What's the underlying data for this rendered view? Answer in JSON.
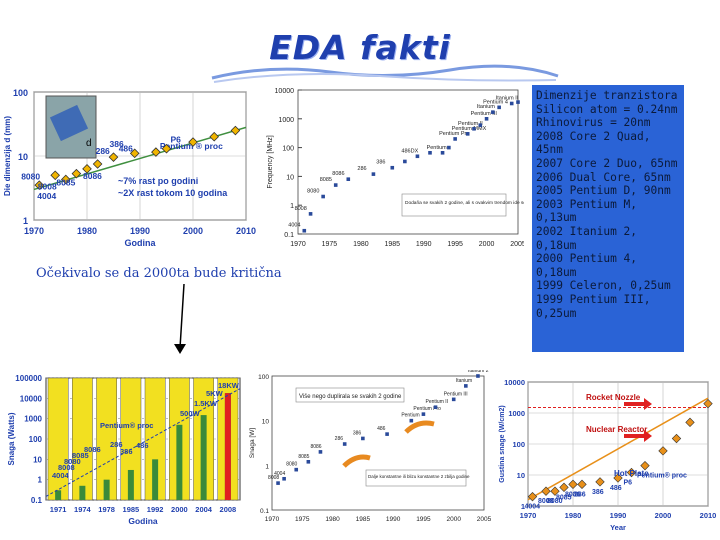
{
  "page": {
    "title": "EDA fakti",
    "note": "Očekivalo se da 2000ta bude kritična",
    "info_lines": [
      "Dimenzije tranzistora",
      "Silicon atom = 0.24nm",
      "Rhinovirus = 20nm",
      "2008 Core 2 Quad,",
      "45nm",
      "2007 Core 2 Duo, 65nm",
      "2006 Dual Core, 65nm",
      "2005 Pentium D, 90nm",
      "2003 Pentium M,",
      "0,13um",
      "2002 Itanium 2,",
      "0,18um",
      "2000 Pentium 4,",
      "0,18um",
      "1999 Celeron, 0,25um",
      "1999 Pentium III,",
      "0,25um"
    ]
  },
  "chart_data": [
    {
      "type": "scatter",
      "ylabel": "Die dimenzija d (mm)",
      "xlabel": "Godina",
      "yscale": "log",
      "ylim": [
        1,
        100
      ],
      "xlim": [
        1970,
        2010
      ],
      "xticks": [
        "1970",
        "1980",
        "1990",
        "2000",
        "2010"
      ],
      "yticks": [
        "1",
        "10",
        "100"
      ],
      "points": [
        {
          "x": 1971,
          "y": 3.5,
          "label": "4004"
        },
        {
          "x": 1974,
          "y": 5.0,
          "label": "8080"
        },
        {
          "x": 1976,
          "y": 4.3,
          "label": "8008"
        },
        {
          "x": 1978,
          "y": 5.3,
          "label": "8085"
        },
        {
          "x": 1980,
          "y": 6.3,
          "label": "8086"
        },
        {
          "x": 1982,
          "y": 7.5,
          "label": "286"
        },
        {
          "x": 1985,
          "y": 9.6,
          "label": "386"
        },
        {
          "x": 1989,
          "y": 11.0,
          "label": "486"
        },
        {
          "x": 1993,
          "y": 11.5,
          "label": "Pentium ® proc"
        },
        {
          "x": 1995,
          "y": 13.0,
          "label": "P6"
        },
        {
          "x": 2000,
          "y": 16.5,
          "label": ""
        },
        {
          "x": 2004,
          "y": 20.0,
          "label": ""
        },
        {
          "x": 2008,
          "y": 25.0,
          "label": ""
        }
      ],
      "annotations": [
        "~7% rast po godini",
        "~2X rast tokom 10 godina",
        "d"
      ]
    },
    {
      "type": "scatter",
      "ylabel": "Frequency [MHz]",
      "yscale": "log",
      "ylim": [
        0.1,
        10000
      ],
      "xlim": [
        1970,
        2005
      ],
      "xticks": [
        "1970",
        "1975",
        "1980",
        "1985",
        "1990",
        "1995",
        "2000",
        "2005"
      ],
      "yticks": [
        "0.1",
        "1",
        "10",
        "100",
        "1000",
        "10000"
      ],
      "points": [
        {
          "x": 1971,
          "y": 0.13,
          "label": "4004"
        },
        {
          "x": 1972,
          "y": 0.5,
          "label": "8008"
        },
        {
          "x": 1974,
          "y": 2,
          "label": "8080"
        },
        {
          "x": 1976,
          "y": 5,
          "label": "8085"
        },
        {
          "x": 1978,
          "y": 8,
          "label": "8086"
        },
        {
          "x": 1982,
          "y": 12,
          "label": "286"
        },
        {
          "x": 1985,
          "y": 20,
          "label": "386"
        },
        {
          "x": 1987,
          "y": 33,
          "label": ""
        },
        {
          "x": 1989,
          "y": 50,
          "label": "486DX"
        },
        {
          "x": 1991,
          "y": 66,
          "label": ""
        },
        {
          "x": 1993,
          "y": 66,
          "label": "Pentium"
        },
        {
          "x": 1994,
          "y": 100,
          "label": ""
        },
        {
          "x": 1995,
          "y": 200,
          "label": "Pentium Pro"
        },
        {
          "x": 1997,
          "y": 300,
          "label": "Pentium MMX"
        },
        {
          "x": 1998,
          "y": 450,
          "label": "Pentium II"
        },
        {
          "x": 1999,
          "y": 600,
          "label": ""
        },
        {
          "x": 2000,
          "y": 1000,
          "label": "Pentium III"
        },
        {
          "x": 2001,
          "y": 1700,
          "label": "Itanium"
        },
        {
          "x": 2002,
          "y": 2500,
          "label": "Pentium 4"
        },
        {
          "x": 2004,
          "y": 3400,
          "label": "Itanium II"
        },
        {
          "x": 2005,
          "y": 3800,
          "label": ""
        }
      ],
      "annotations": [
        "Dodaňa se svakih 2 godine, ali s ovakvim trendom ide se mnogo brže"
      ]
    },
    {
      "type": "bar",
      "ylabel": "Snaga (Watts)",
      "xlabel": "Godina",
      "yscale": "log",
      "ylim": [
        0.1,
        100000
      ],
      "categories": [
        "1971",
        "1974",
        "1978",
        "1985",
        "1992",
        "2000",
        "2004",
        "2008"
      ],
      "values": [
        0.3,
        0.5,
        1,
        3,
        10,
        500,
        1500,
        18000
      ],
      "yticks": [
        "0.1",
        "1",
        "10",
        "100",
        "1000",
        "10000",
        "100000"
      ],
      "annotations": [
        "18KW",
        "5KW",
        "1.5KW",
        "500W",
        "Pentium® proc",
        "8080",
        "8085",
        "8086",
        "286",
        "386",
        "486",
        "8008",
        "4004"
      ]
    },
    {
      "type": "scatter",
      "ylabel": "Snaga [W]",
      "yscale": "log",
      "ylim": [
        0.1,
        100
      ],
      "xlim": [
        1970,
        2005
      ],
      "xticks": [
        "1970",
        "1975",
        "1980",
        "1985",
        "1990",
        "1995",
        "2000",
        "2005"
      ],
      "yticks": [
        "0.1",
        "1",
        "10",
        "100"
      ],
      "points": [
        {
          "x": 1971,
          "y": 0.4,
          "label": "8008"
        },
        {
          "x": 1972,
          "y": 0.5,
          "label": "4004"
        },
        {
          "x": 1974,
          "y": 0.8,
          "label": "8080"
        },
        {
          "x": 1976,
          "y": 1.2,
          "label": "8085"
        },
        {
          "x": 1978,
          "y": 2,
          "label": "8086"
        },
        {
          "x": 1982,
          "y": 3,
          "label": "286"
        },
        {
          "x": 1985,
          "y": 4,
          "label": "386"
        },
        {
          "x": 1989,
          "y": 5,
          "label": "486"
        },
        {
          "x": 1993,
          "y": 10,
          "label": "Pentium"
        },
        {
          "x": 1995,
          "y": 14,
          "label": "Pentium Pro"
        },
        {
          "x": 1997,
          "y": 20,
          "label": "Pentium II"
        },
        {
          "x": 2000,
          "y": 30,
          "label": "Pentium III"
        },
        {
          "x": 2002,
          "y": 60,
          "label": "Itanium"
        },
        {
          "x": 2004,
          "y": 100,
          "label": "Itanium 2"
        }
      ],
      "annotations": [
        "Više nego duplirala se svakih 2 godine",
        "Dalje konstantne ili blizu konstantne 2 zbilja godine"
      ]
    },
    {
      "type": "scatter",
      "ylabel": "Gustina snage (W/cm2)",
      "xlabel": "Year",
      "yscale": "log",
      "ylim": [
        1,
        10000
      ],
      "xlim": [
        1970,
        2010
      ],
      "xticks": [
        "1970",
        "1980",
        "1990",
        "2000",
        "2010"
      ],
      "yticks": [
        "1",
        "10",
        "100",
        "1000",
        "10000"
      ],
      "points": [
        {
          "x": 1971,
          "y": 2,
          "label": "4004"
        },
        {
          "x": 1974,
          "y": 3,
          "label": "8008"
        },
        {
          "x": 1976,
          "y": 3,
          "label": "8080"
        },
        {
          "x": 1978,
          "y": 4,
          "label": "8085"
        },
        {
          "x": 1980,
          "y": 5,
          "label": "8086"
        },
        {
          "x": 1982,
          "y": 5,
          "label": "286"
        },
        {
          "x": 1986,
          "y": 6,
          "label": "386"
        },
        {
          "x": 1990,
          "y": 8,
          "label": "486"
        },
        {
          "x": 1993,
          "y": 12,
          "label": "P6"
        },
        {
          "x": 1996,
          "y": 20,
          "label": "Pentium® proc"
        },
        {
          "x": 2000,
          "y": 60,
          "label": ""
        },
        {
          "x": 2003,
          "y": 150,
          "label": ""
        },
        {
          "x": 2006,
          "y": 500,
          "label": ""
        },
        {
          "x": 2010,
          "y": 2000,
          "label": ""
        }
      ],
      "annotations": [
        "Rocket Nozzle",
        "Nuclear Reactor",
        "Hot Plate"
      ]
    }
  ]
}
